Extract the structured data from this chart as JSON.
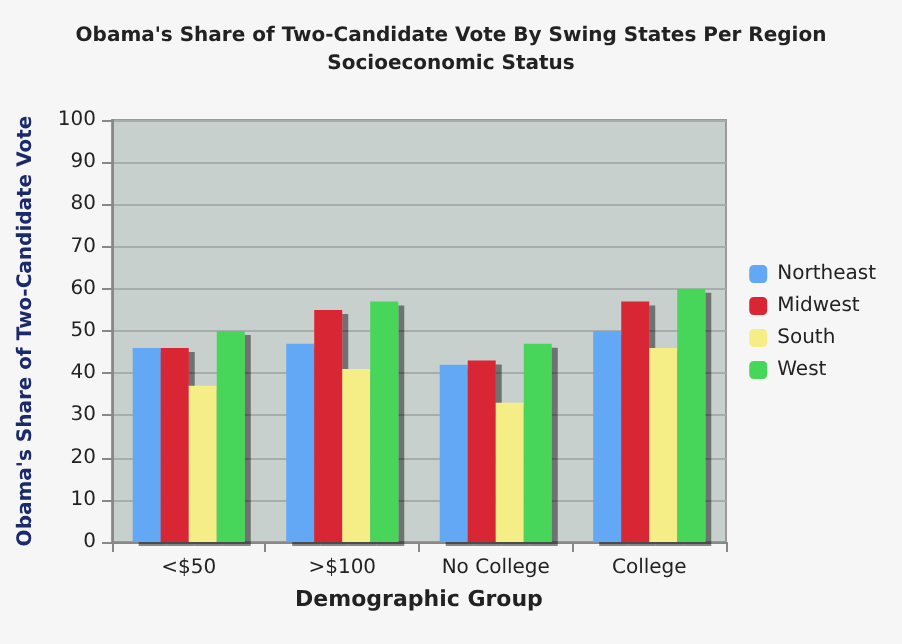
{
  "chart_data": {
    "type": "bar",
    "title": "Obama's Share of Two-Candidate Vote By Swing States Per Region",
    "subtitle": "Socioeconomic Status",
    "xlabel": "Demographic Group",
    "ylabel": "Obama's Share of Two-Candidate Vote",
    "categories": [
      "<$50",
      ">$100",
      "No College",
      "College"
    ],
    "series": [
      {
        "name": "Northeast",
        "color": "#62a8f5",
        "values": [
          46,
          47,
          42,
          50
        ]
      },
      {
        "name": "Midwest",
        "color": "#d92634",
        "values": [
          46,
          55,
          43,
          57
        ]
      },
      {
        "name": "South",
        "color": "#f5ee86",
        "values": [
          37,
          41,
          33,
          46
        ]
      },
      {
        "name": "West",
        "color": "#46d65a",
        "values": [
          50,
          57,
          47,
          60
        ]
      }
    ],
    "ylim": [
      0,
      100
    ],
    "yticks": [
      0,
      10,
      20,
      30,
      40,
      50,
      60,
      70,
      80,
      90,
      100
    ],
    "grid": "y",
    "legend": "right"
  }
}
